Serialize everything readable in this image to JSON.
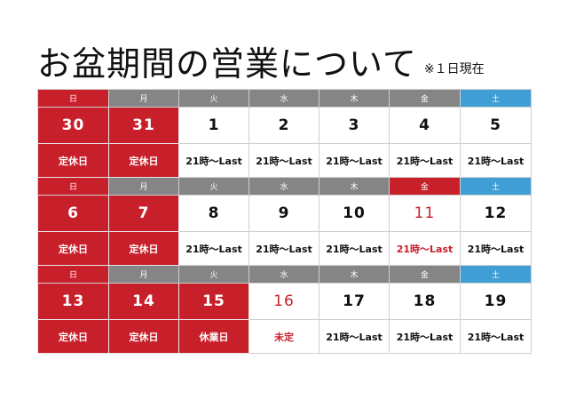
{
  "title": "お盆期間の営業について",
  "note": "※１日現在",
  "weeks": [
    {
      "days": [
        {
          "dow": "日",
          "date": "30",
          "status": "定休日"
        },
        {
          "dow": "月",
          "date": "31",
          "status": "定休日"
        },
        {
          "dow": "火",
          "date": "1",
          "status": "21時〜Last"
        },
        {
          "dow": "水",
          "date": "2",
          "status": "21時〜Last"
        },
        {
          "dow": "木",
          "date": "3",
          "status": "21時〜Last"
        },
        {
          "dow": "金",
          "date": "4",
          "status": "21時〜Last"
        },
        {
          "dow": "土",
          "date": "5",
          "status": "21時〜Last"
        }
      ]
    },
    {
      "days": [
        {
          "dow": "日",
          "date": "6",
          "status": "定休日"
        },
        {
          "dow": "月",
          "date": "7",
          "status": "定休日"
        },
        {
          "dow": "火",
          "date": "8",
          "status": "21時〜Last"
        },
        {
          "dow": "水",
          "date": "9",
          "status": "21時〜Last"
        },
        {
          "dow": "木",
          "date": "10",
          "status": "21時〜Last"
        },
        {
          "dow": "金",
          "date": "11",
          "status": "21時〜Last"
        },
        {
          "dow": "土",
          "date": "12",
          "status": "21時〜Last"
        }
      ]
    },
    {
      "days": [
        {
          "dow": "日",
          "date": "13",
          "status": "定休日"
        },
        {
          "dow": "月",
          "date": "14",
          "status": "定休日"
        },
        {
          "dow": "火",
          "date": "15",
          "status": "休業日"
        },
        {
          "dow": "水",
          "date": "16",
          "status": "未定"
        },
        {
          "dow": "木",
          "date": "17",
          "status": "21時〜Last"
        },
        {
          "dow": "金",
          "date": "18",
          "status": "21時〜Last"
        },
        {
          "dow": "土",
          "date": "19",
          "status": "21時〜Last"
        }
      ]
    }
  ],
  "colors": {
    "closed_red": "#c8202b",
    "saturday_blue": "#3f9fd4",
    "weekday_gray": "#858585"
  }
}
